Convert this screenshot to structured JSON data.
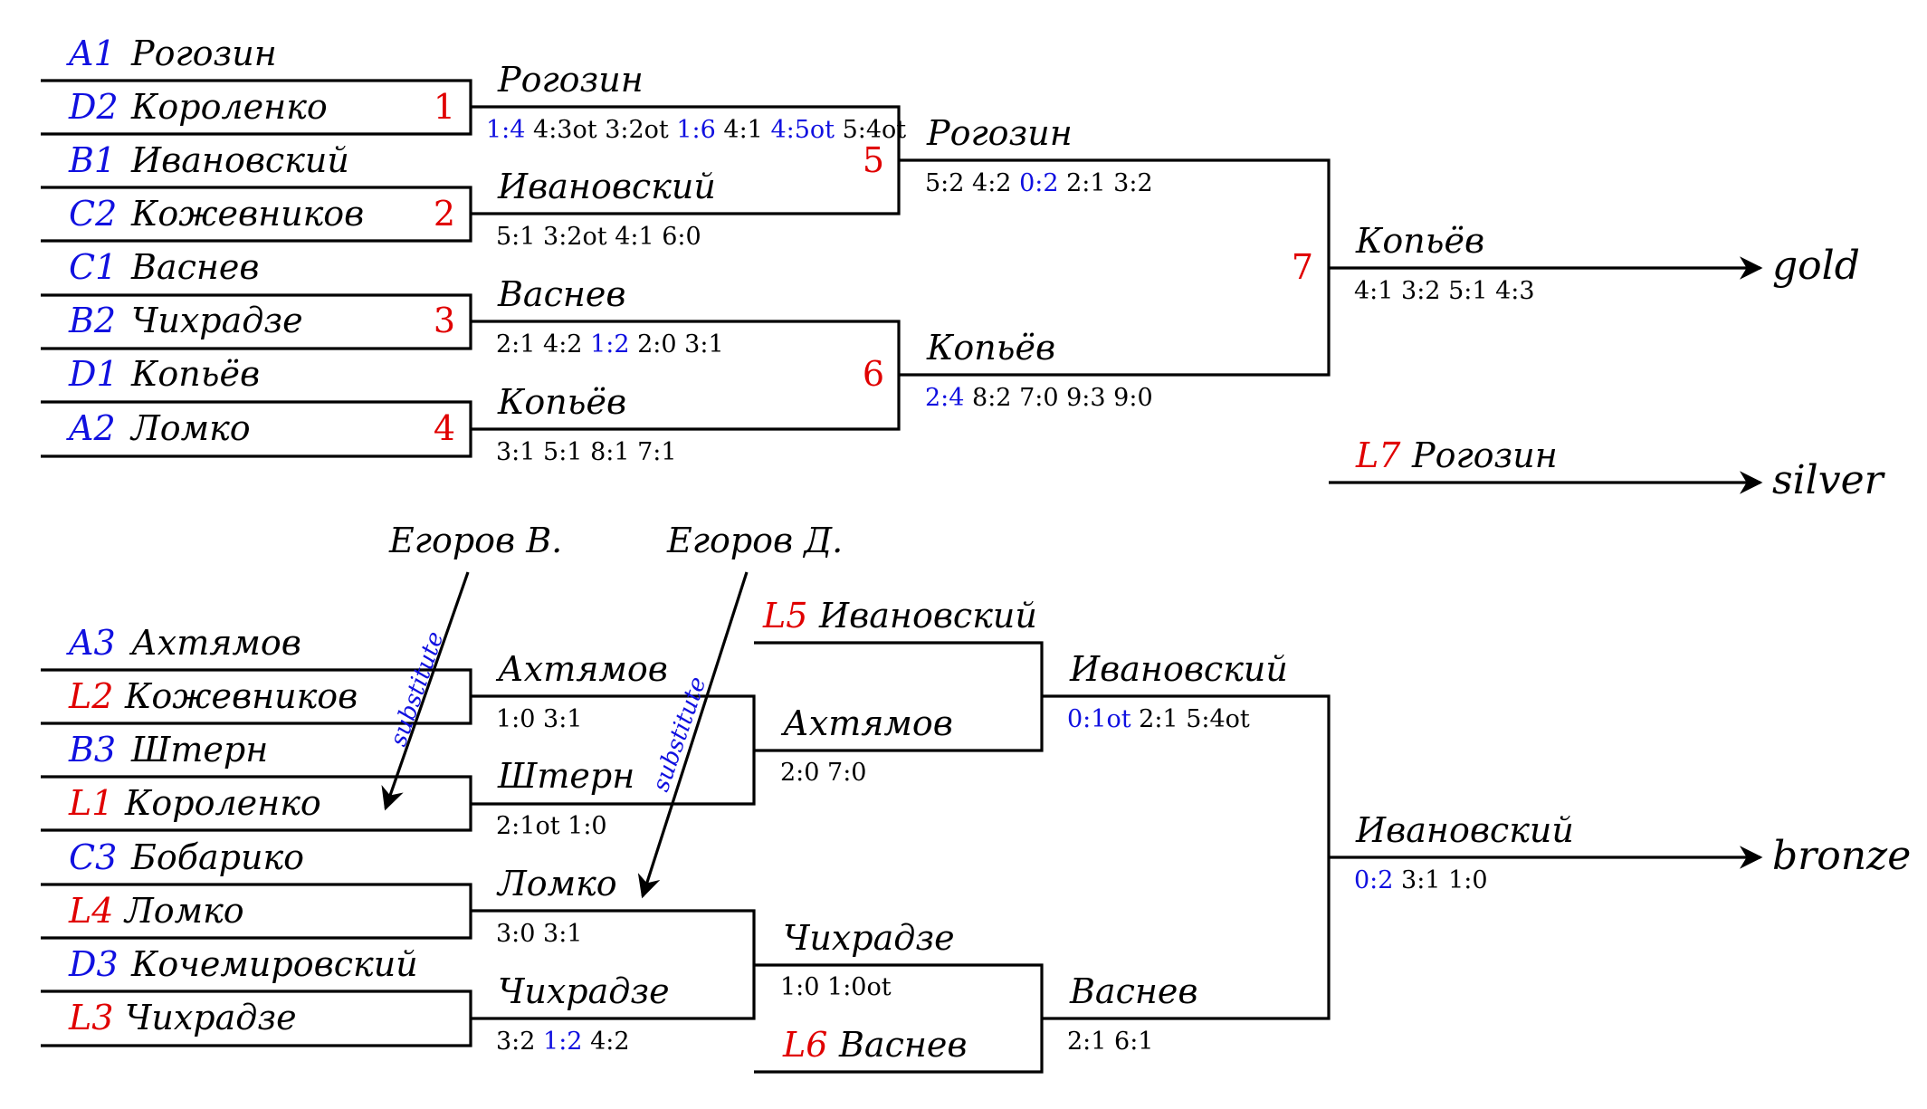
{
  "colors": {
    "seed": "#1010e0",
    "loser": "#e00000",
    "line": "#000000",
    "blue_score": "#1010e0"
  },
  "seeds": [
    {
      "seed": "A1",
      "name": "Рогозин"
    },
    {
      "seed": "D2",
      "name": "Короленко"
    },
    {
      "seed": "B1",
      "name": "Ивановский"
    },
    {
      "seed": "C2",
      "name": "Кожевников"
    },
    {
      "seed": "C1",
      "name": "Васнев"
    },
    {
      "seed": "B2",
      "name": "Чихрадзе"
    },
    {
      "seed": "D1",
      "name": "Копьёв"
    },
    {
      "seed": "A2",
      "name": "Ломко"
    }
  ],
  "lower_seeds": [
    {
      "seed": "A3",
      "name": "Ахтямов"
    },
    {
      "seed": "L2",
      "name": "Кожевников"
    },
    {
      "seed": "B3",
      "name": "Штерн"
    },
    {
      "seed": "L1",
      "name": "Короленко"
    },
    {
      "seed": "C3",
      "name": "Бобарико"
    },
    {
      "seed": "L4",
      "name": "Ломко"
    },
    {
      "seed": "D3",
      "name": "Кочемировский"
    },
    {
      "seed": "L3",
      "name": "Чихрадзе"
    }
  ],
  "match_numbers": [
    "1",
    "2",
    "3",
    "4",
    "5",
    "6",
    "7"
  ],
  "winners": {
    "m1": {
      "name": "Рогозин",
      "scores": [
        {
          "t": "1:4",
          "blue": true
        },
        {
          "t": "4:3ot"
        },
        {
          "t": "3:2ot"
        },
        {
          "t": "1:6",
          "blue": true
        },
        {
          "t": "4:1"
        },
        {
          "t": "4:5ot",
          "blue": true
        },
        {
          "t": "5:4ot"
        }
      ]
    },
    "m2": {
      "name": "Ивановский",
      "scores": [
        {
          "t": "5:1"
        },
        {
          "t": "3:2ot"
        },
        {
          "t": "4:1"
        },
        {
          "t": "6:0"
        }
      ]
    },
    "m3": {
      "name": "Васнев",
      "scores": [
        {
          "t": "2:1"
        },
        {
          "t": "4:2"
        },
        {
          "t": "1:2",
          "blue": true
        },
        {
          "t": "2:0"
        },
        {
          "t": "3:1"
        }
      ]
    },
    "m4": {
      "name": "Копьёв",
      "scores": [
        {
          "t": "3:1"
        },
        {
          "t": "5:1"
        },
        {
          "t": "8:1"
        },
        {
          "t": "7:1"
        }
      ]
    },
    "m5": {
      "name": "Рогозин",
      "scores": [
        {
          "t": "5:2"
        },
        {
          "t": "4:2"
        },
        {
          "t": "0:2",
          "blue": true
        },
        {
          "t": "2:1"
        },
        {
          "t": "3:2"
        }
      ]
    },
    "m6": {
      "name": "Копьёв",
      "scores": [
        {
          "t": "2:4",
          "blue": true
        },
        {
          "t": "8:2"
        },
        {
          "t": "7:0"
        },
        {
          "t": "9:3"
        },
        {
          "t": "9:0"
        }
      ]
    },
    "m7": {
      "name": "Копьёв",
      "scores": [
        {
          "t": "4:1"
        },
        {
          "t": "3:2"
        },
        {
          "t": "5:1"
        },
        {
          "t": "4:3"
        }
      ]
    },
    "l1": {
      "name": "Ахтямов",
      "scores": [
        {
          "t": "1:0"
        },
        {
          "t": "3:1"
        }
      ]
    },
    "l2": {
      "name": "Штерн",
      "scores": [
        {
          "t": "2:1ot"
        },
        {
          "t": "1:0"
        }
      ]
    },
    "l3": {
      "name": "Ломко",
      "scores": [
        {
          "t": "3:0"
        },
        {
          "t": "3:1"
        }
      ]
    },
    "l4": {
      "name": "Чихрадзе",
      "scores": [
        {
          "t": "3:2"
        },
        {
          "t": "1:2",
          "blue": true
        },
        {
          "t": "4:2"
        }
      ]
    },
    "l5": {
      "name": "Ахтямов",
      "scores": [
        {
          "t": "2:0"
        },
        {
          "t": "7:0"
        }
      ]
    },
    "l6": {
      "name": "Чихрадзе",
      "scores": [
        {
          "t": "1:0"
        },
        {
          "t": "1:0ot"
        }
      ]
    },
    "l7": {
      "name": "Ивановский",
      "scores": [
        {
          "t": "0:1ot",
          "blue": true
        },
        {
          "t": "2:1"
        },
        {
          "t": "5:4ot"
        }
      ]
    },
    "l8": {
      "name": "Васнев",
      "scores": [
        {
          "t": "2:1"
        },
        {
          "t": "6:1"
        }
      ]
    },
    "bronze_match": {
      "name": "Ивановский",
      "scores": [
        {
          "t": "0:2",
          "blue": true
        },
        {
          "t": "3:1"
        },
        {
          "t": "1:0"
        }
      ]
    }
  },
  "late_entries": {
    "l5": {
      "seed": "L5",
      "name": "Ивановский"
    },
    "l6": {
      "seed": "L6",
      "name": "Васнев"
    },
    "l7": {
      "seed": "L7",
      "name": "Рогозин"
    }
  },
  "medals": {
    "gold": "gold",
    "silver": "silver",
    "bronze": "bronze"
  },
  "substitutions": [
    {
      "from": "Егоров В.",
      "label": "substitute"
    },
    {
      "from": "Егоров Д.",
      "label": "substitute"
    }
  ]
}
